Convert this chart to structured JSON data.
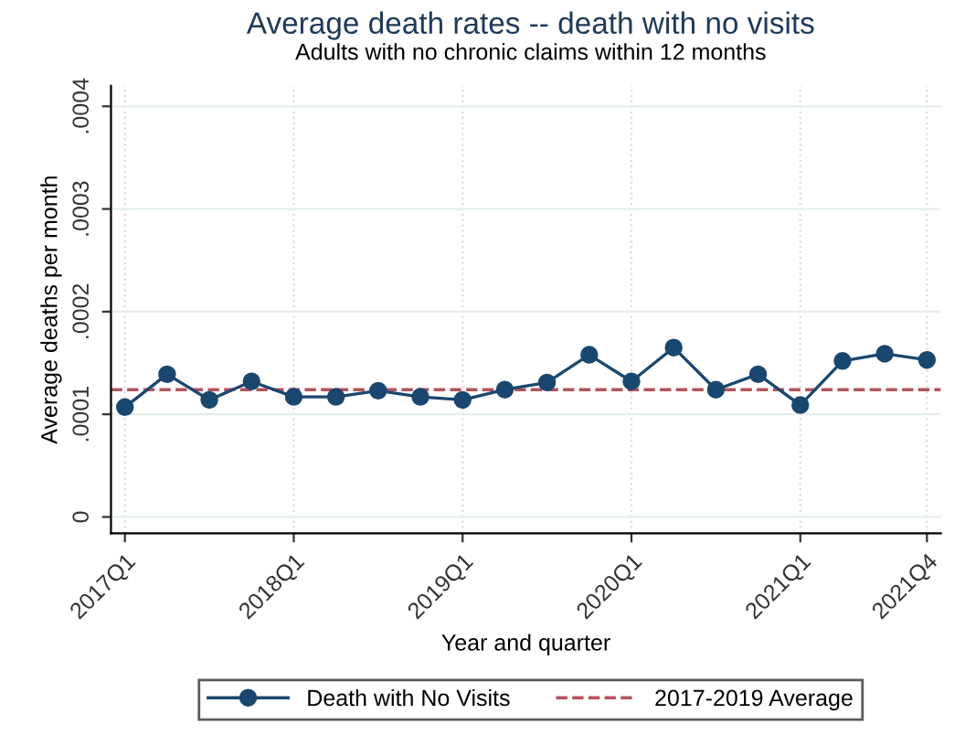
{
  "chart_data": {
    "type": "line",
    "title": "Average death rates -- death with no visits",
    "subtitle": "Adults with no chronic claims within 12 months",
    "xlabel": "Year and quarter",
    "ylabel": "Average deaths per month",
    "categories": [
      "2017Q1",
      null,
      null,
      null,
      "2018Q1",
      null,
      null,
      null,
      "2019Q1",
      null,
      null,
      null,
      "2020Q1",
      null,
      null,
      null,
      "2021Q1",
      null,
      null,
      "2021Q4"
    ],
    "series": [
      {
        "name": "Death with No Visits",
        "color": "#1a476f",
        "values": [
          0.000107,
          0.000139,
          0.000114,
          0.000132,
          0.000117,
          0.000117,
          0.000123,
          0.000117,
          0.000114,
          0.000124,
          0.000131,
          0.000158,
          0.000132,
          0.000165,
          0.000124,
          0.000139,
          0.000109,
          0.000152,
          0.000159,
          0.000153
        ]
      }
    ],
    "ref_lines": [
      {
        "axis": "y",
        "value": 0.000124,
        "label": "2017-2019 Average",
        "color": "#b5535b",
        "line_style": "dashed"
      }
    ],
    "ylim": [
      -1.6e-05,
      0.00042
    ],
    "yticks": [
      {
        "value": 0,
        "label": "0"
      },
      {
        "value": 0.0001,
        "label": ".0001"
      },
      {
        "value": 0.0002,
        "label": ".0002"
      },
      {
        "value": 0.0003,
        "label": ".0003"
      },
      {
        "value": 0.0004,
        "label": ".0004"
      }
    ],
    "grid": true,
    "legend": "bottom",
    "marker": "circle",
    "line_style": "solid"
  }
}
